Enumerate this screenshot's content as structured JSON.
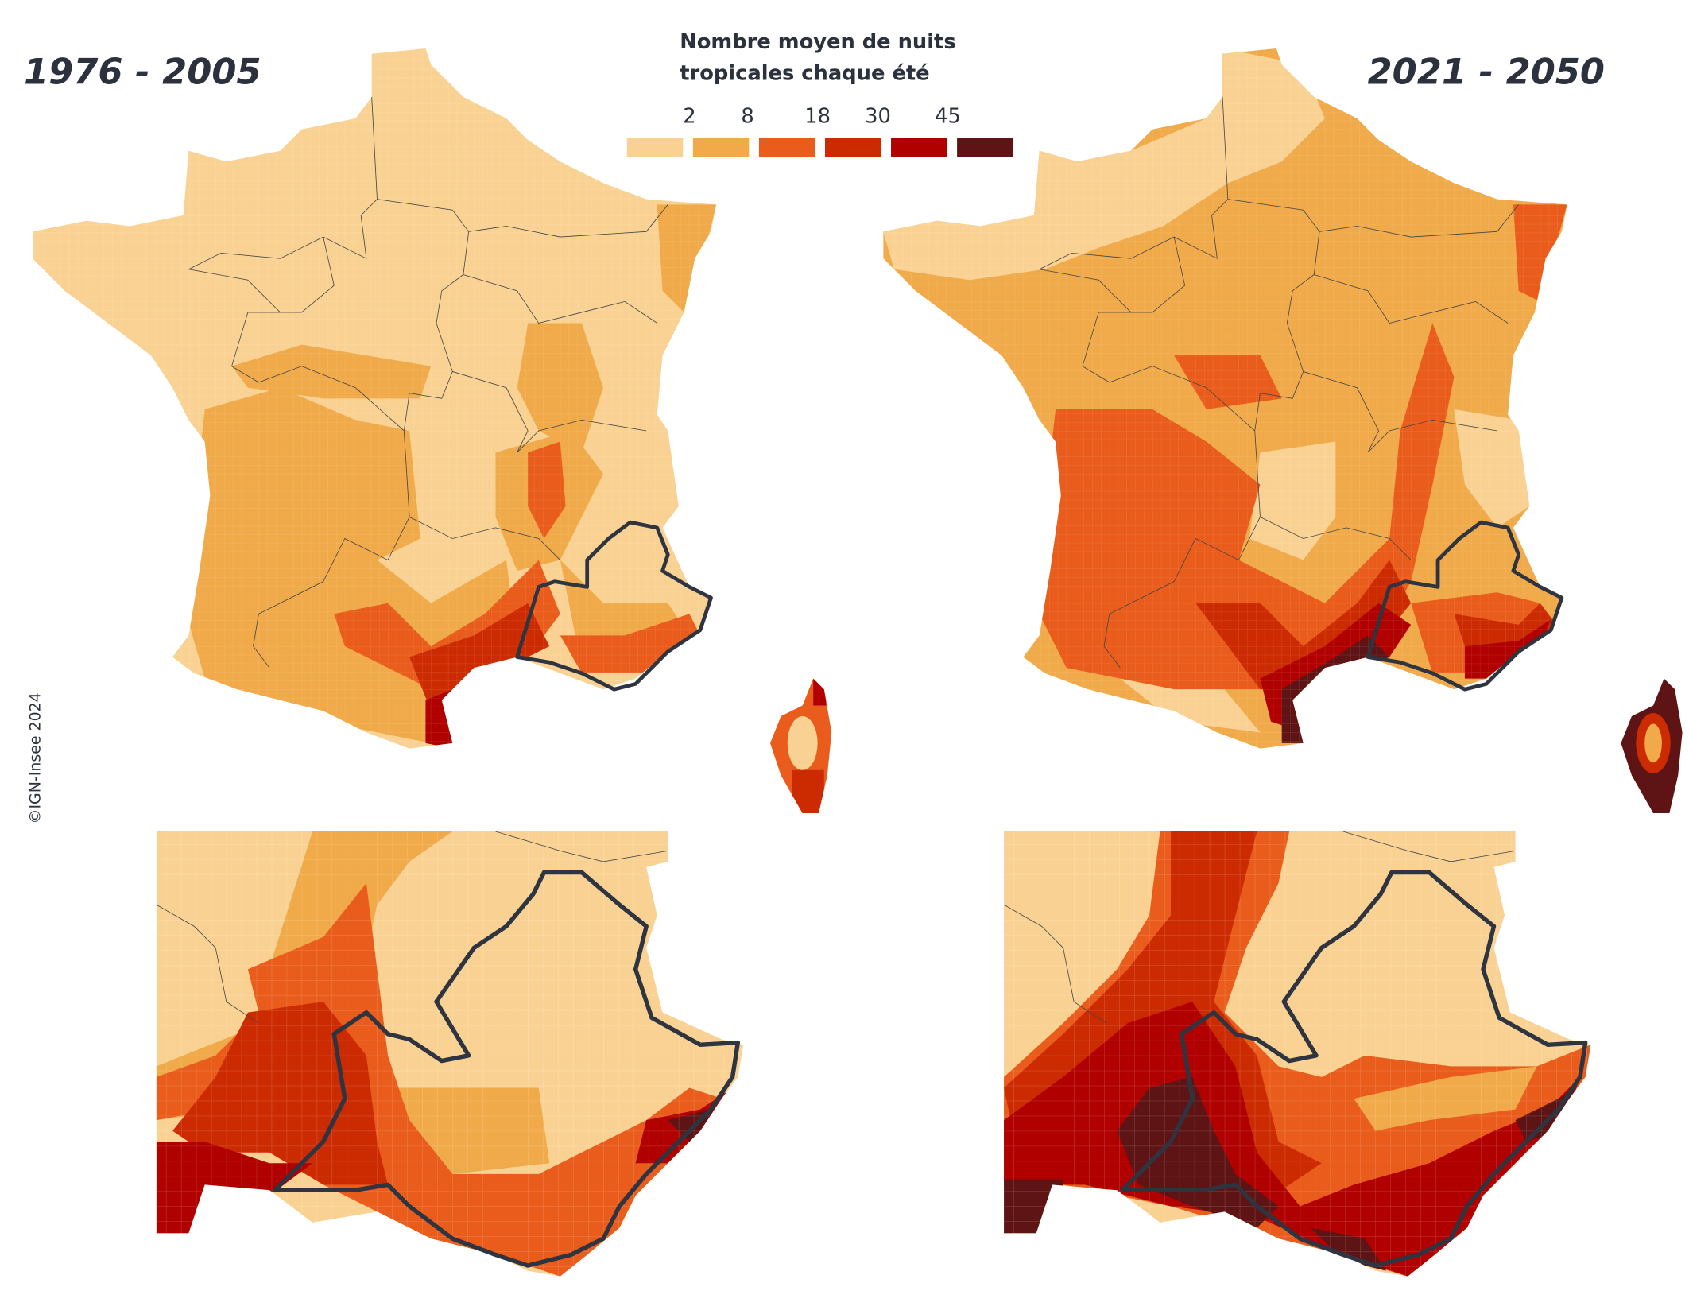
{
  "periods": {
    "left": "1976 - 2005",
    "right": "2021 - 2050"
  },
  "legend": {
    "title_line1": "Nombre  moyen  de  nuits",
    "title_line2": "tropicales chaque été",
    "breaks": [
      "2",
      "8",
      "18",
      "30",
      "45"
    ],
    "colors": [
      "#f9d293",
      "#f0aa4a",
      "#e95c1b",
      "#cc2b02",
      "#b00000",
      "#5e1414"
    ]
  },
  "credit": "©IGN-Insee 2024"
}
